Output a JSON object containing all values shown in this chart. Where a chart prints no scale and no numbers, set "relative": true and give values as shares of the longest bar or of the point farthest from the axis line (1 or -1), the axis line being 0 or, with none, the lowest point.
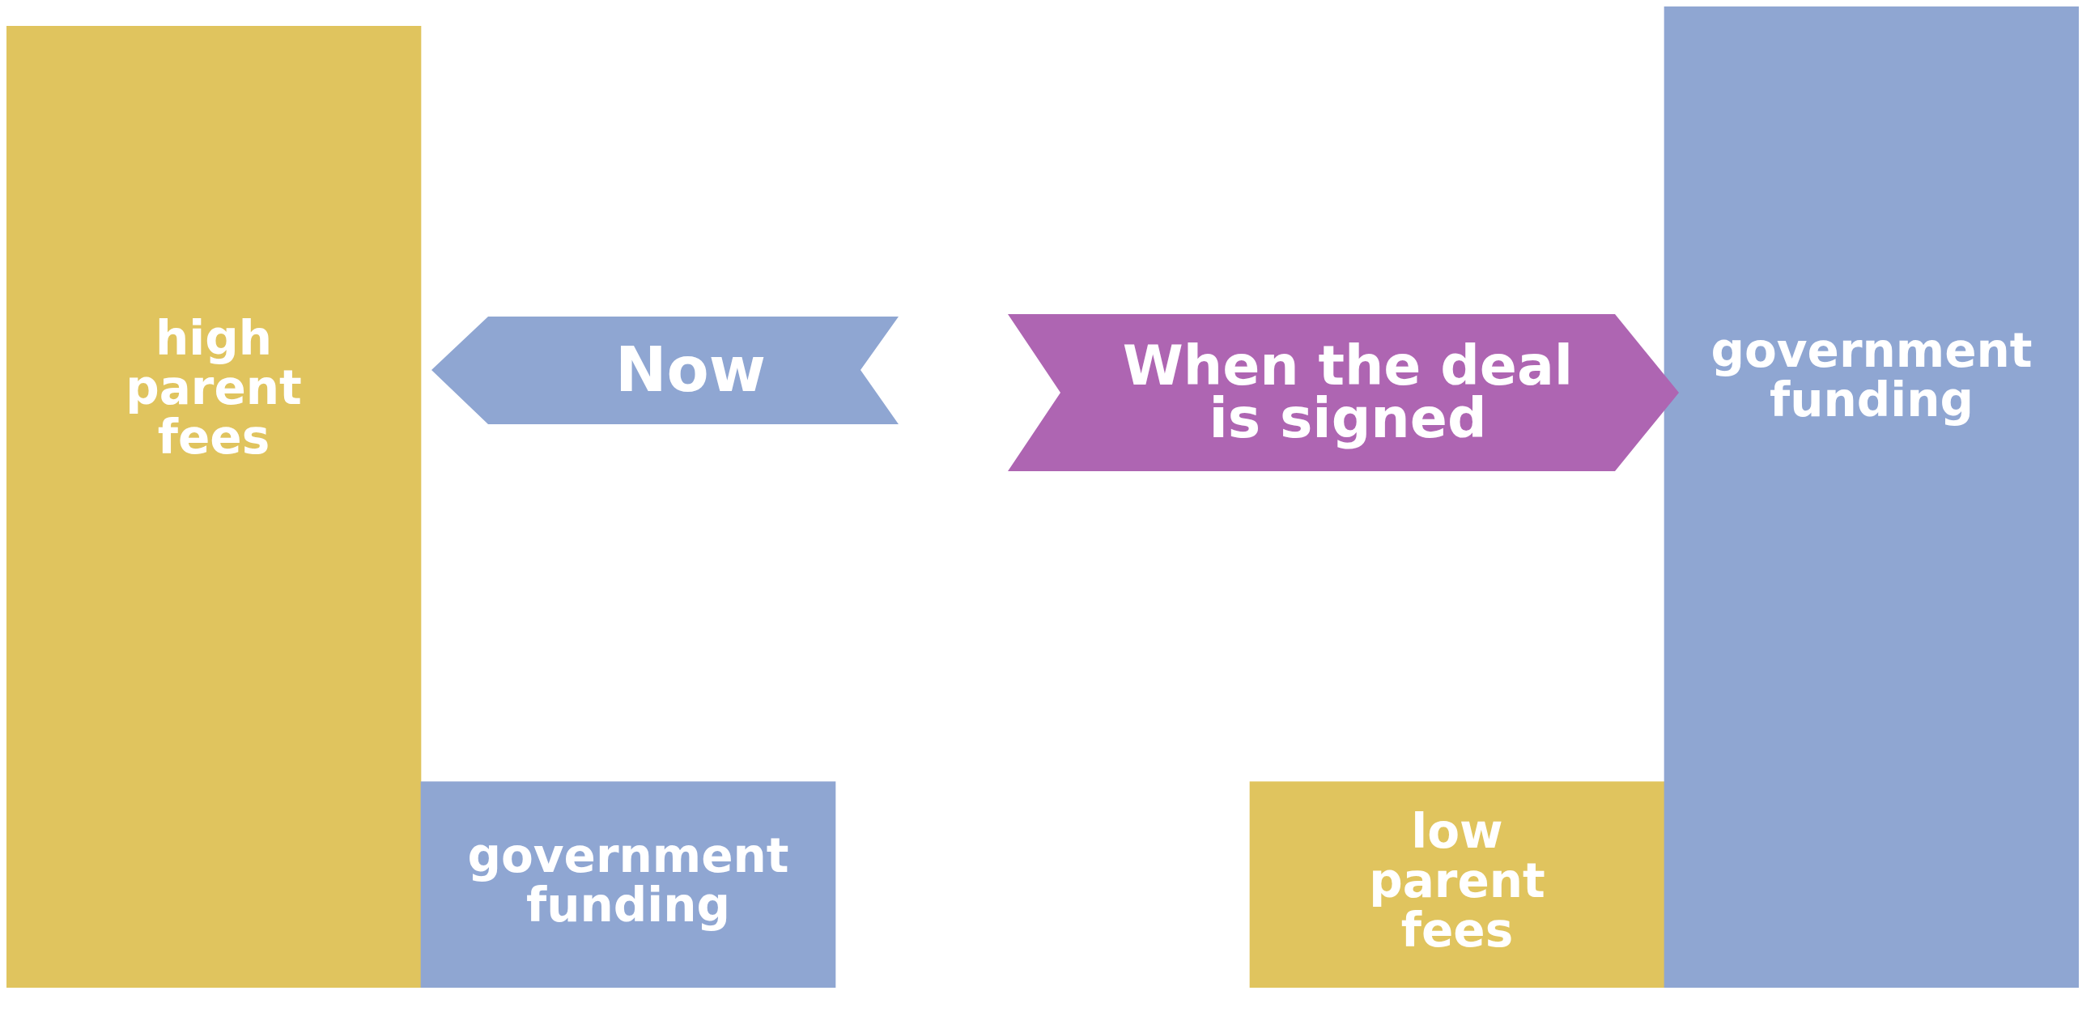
{
  "chart_data": {
    "type": "bar",
    "relative": true,
    "categories": [
      "high parent fees",
      "government funding",
      null,
      "low parent fees",
      "government funding"
    ],
    "values": [
      0.98,
      0.21,
      null,
      0.21,
      1
    ],
    "colors": [
      "#e0c45e",
      "#8fa6d2",
      "#ffffff",
      "#e0c45e",
      "#8fa6d2"
    ],
    "annotations": [
      "Now",
      "When the deal is signed"
    ],
    "legend": false,
    "tick_labels": false
  }
}
